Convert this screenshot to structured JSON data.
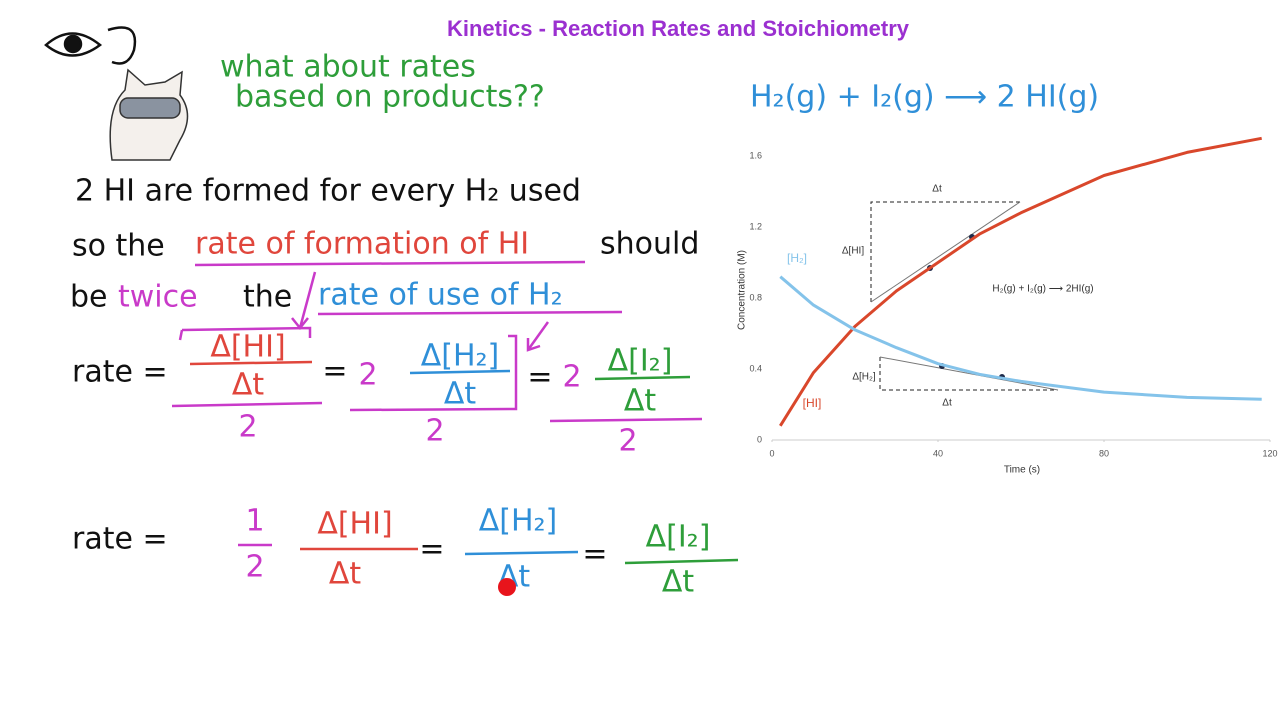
{
  "header": {
    "title": "Kinetics - Reaction Rates and Stoichiometry"
  },
  "note": {
    "line1": "what about rates",
    "line2": "based on products??"
  },
  "reaction": "H₂(g) + I₂(g) ⟶ 2 HI(g)",
  "notes": {
    "line1": "2 HI are formed for every H₂ used",
    "line2": [
      "so the",
      "rate of formation of HI",
      "should"
    ],
    "line3": [
      "be",
      "twice",
      "the",
      "rate of use of H₂"
    ]
  },
  "equation1": {
    "lhs": "rate =",
    "term1": {
      "num": "Δ[HI]",
      "den": "Δt",
      "div": "2"
    },
    "eq1": "=",
    "coef2": "2",
    "term2": {
      "num": "Δ[H₂]",
      "den": "Δt",
      "div": "2"
    },
    "eq2": "=",
    "coef3": "2",
    "term3": {
      "num": "Δ[I₂]",
      "den": "Δt",
      "div": "2"
    }
  },
  "equation2": {
    "lhs": "rate =",
    "half": {
      "num": "1",
      "den": "2"
    },
    "term1": {
      "num": "Δ[HI]",
      "den": "Δt"
    },
    "eq1": "=",
    "term2": {
      "num": "Δ[H₂]",
      "den": "Δt"
    },
    "eq2": "=",
    "term3": {
      "num": "Δ[I₂]",
      "den": "Δt"
    }
  },
  "chart_data": {
    "type": "line",
    "x_label": "Time (s)",
    "y_label": "Concentration (M)",
    "x": [
      2,
      10,
      20,
      30,
      40,
      50,
      60,
      80,
      100,
      118
    ],
    "series": [
      {
        "name": "[HI]",
        "color": "#d9472b",
        "values": [
          0.08,
          0.38,
          0.64,
          0.84,
          1.0,
          1.16,
          1.28,
          1.49,
          1.62,
          1.7
        ]
      },
      {
        "name": "[H₂]",
        "color": "#84c3ea",
        "values": [
          0.92,
          0.76,
          0.62,
          0.52,
          0.43,
          0.37,
          0.33,
          0.27,
          0.24,
          0.23
        ]
      }
    ],
    "xlim": [
      0,
      120
    ],
    "ylim": [
      0,
      1.8
    ],
    "xticks": [
      0,
      40,
      80,
      120
    ],
    "yticks": [
      0,
      0.4,
      0.8,
      1.2,
      1.6
    ],
    "annotations": [
      "Δt",
      "Δ[HI]",
      "H₂(g) + I₂(g) ⟶ 2HI(g)",
      "Δ[H₂]",
      "Δt"
    ]
  }
}
